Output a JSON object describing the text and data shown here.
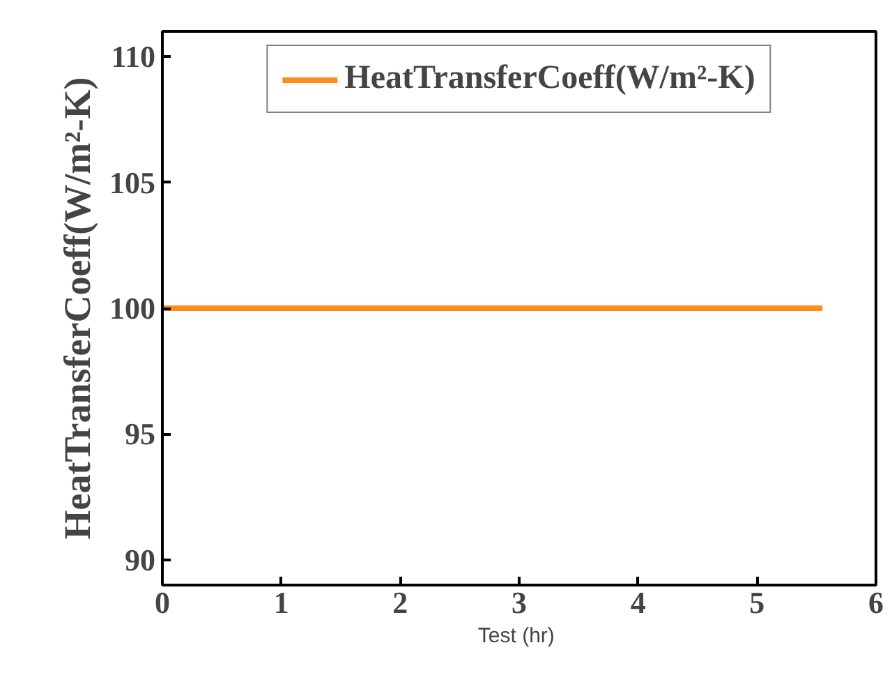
{
  "chart_data": {
    "type": "line",
    "xlabel": "Test  (hr)",
    "ylabel": "HeatTransferCoeff(W/m²-K)",
    "x": [
      0,
      5.55
    ],
    "series": [
      {
        "name": "HeatTransferCoeff(W/m²-K)",
        "color": "#ff8c1a",
        "values": [
          100,
          100
        ]
      }
    ],
    "xlim": [
      0,
      6
    ],
    "xticks": [
      0,
      1,
      2,
      3,
      4,
      5,
      6
    ],
    "ylim": [
      89,
      111
    ],
    "yticks": [
      90,
      95,
      100,
      105,
      110
    ],
    "grid": false,
    "legend": "top",
    "line_style": "solid",
    "marker": "none"
  }
}
